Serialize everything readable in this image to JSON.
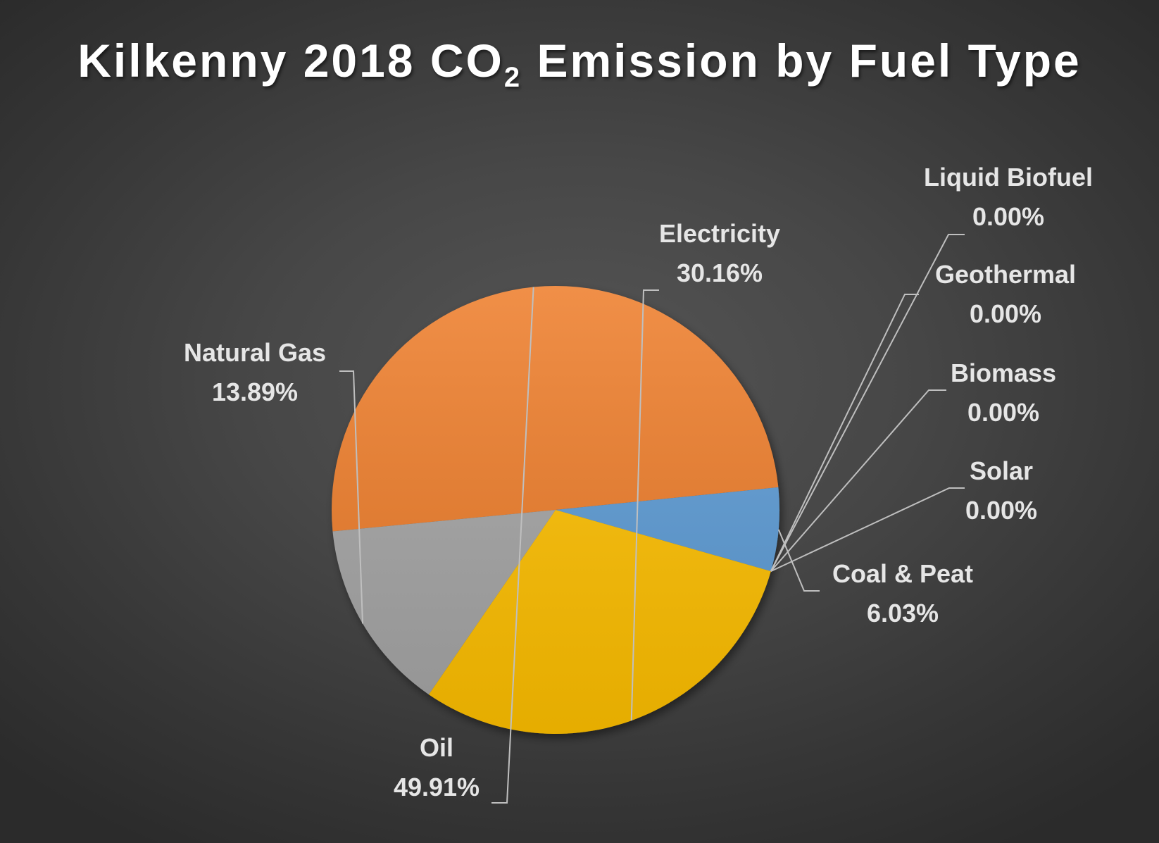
{
  "chart_data": {
    "type": "pie",
    "title": {
      "pre": "Kilkenny 2018 CO",
      "sub": "2",
      "post": " Emission by Fuel Type"
    },
    "categories": [
      "Oil",
      "Natural Gas",
      "Electricity",
      "Liquid Biofuel",
      "Geothermal",
      "Biomass",
      "Solar",
      "Coal & Peat"
    ],
    "values": [
      49.91,
      13.89,
      30.16,
      0.0,
      0.0,
      0.0,
      0.0,
      6.03
    ],
    "value_labels": [
      "49.91%",
      "13.89%",
      "30.16%",
      "0.00%",
      "0.00%",
      "0.00%",
      "0.00%",
      "6.03%"
    ],
    "colors": [
      "#ee7d2c",
      "#a5a5a5",
      "#ffc000",
      "#4472c4",
      "#70ad47",
      "#264478",
      "#9e480e",
      "#5b9bd5"
    ],
    "legend": "none",
    "data_labels": "outside-with-leader-lines"
  }
}
